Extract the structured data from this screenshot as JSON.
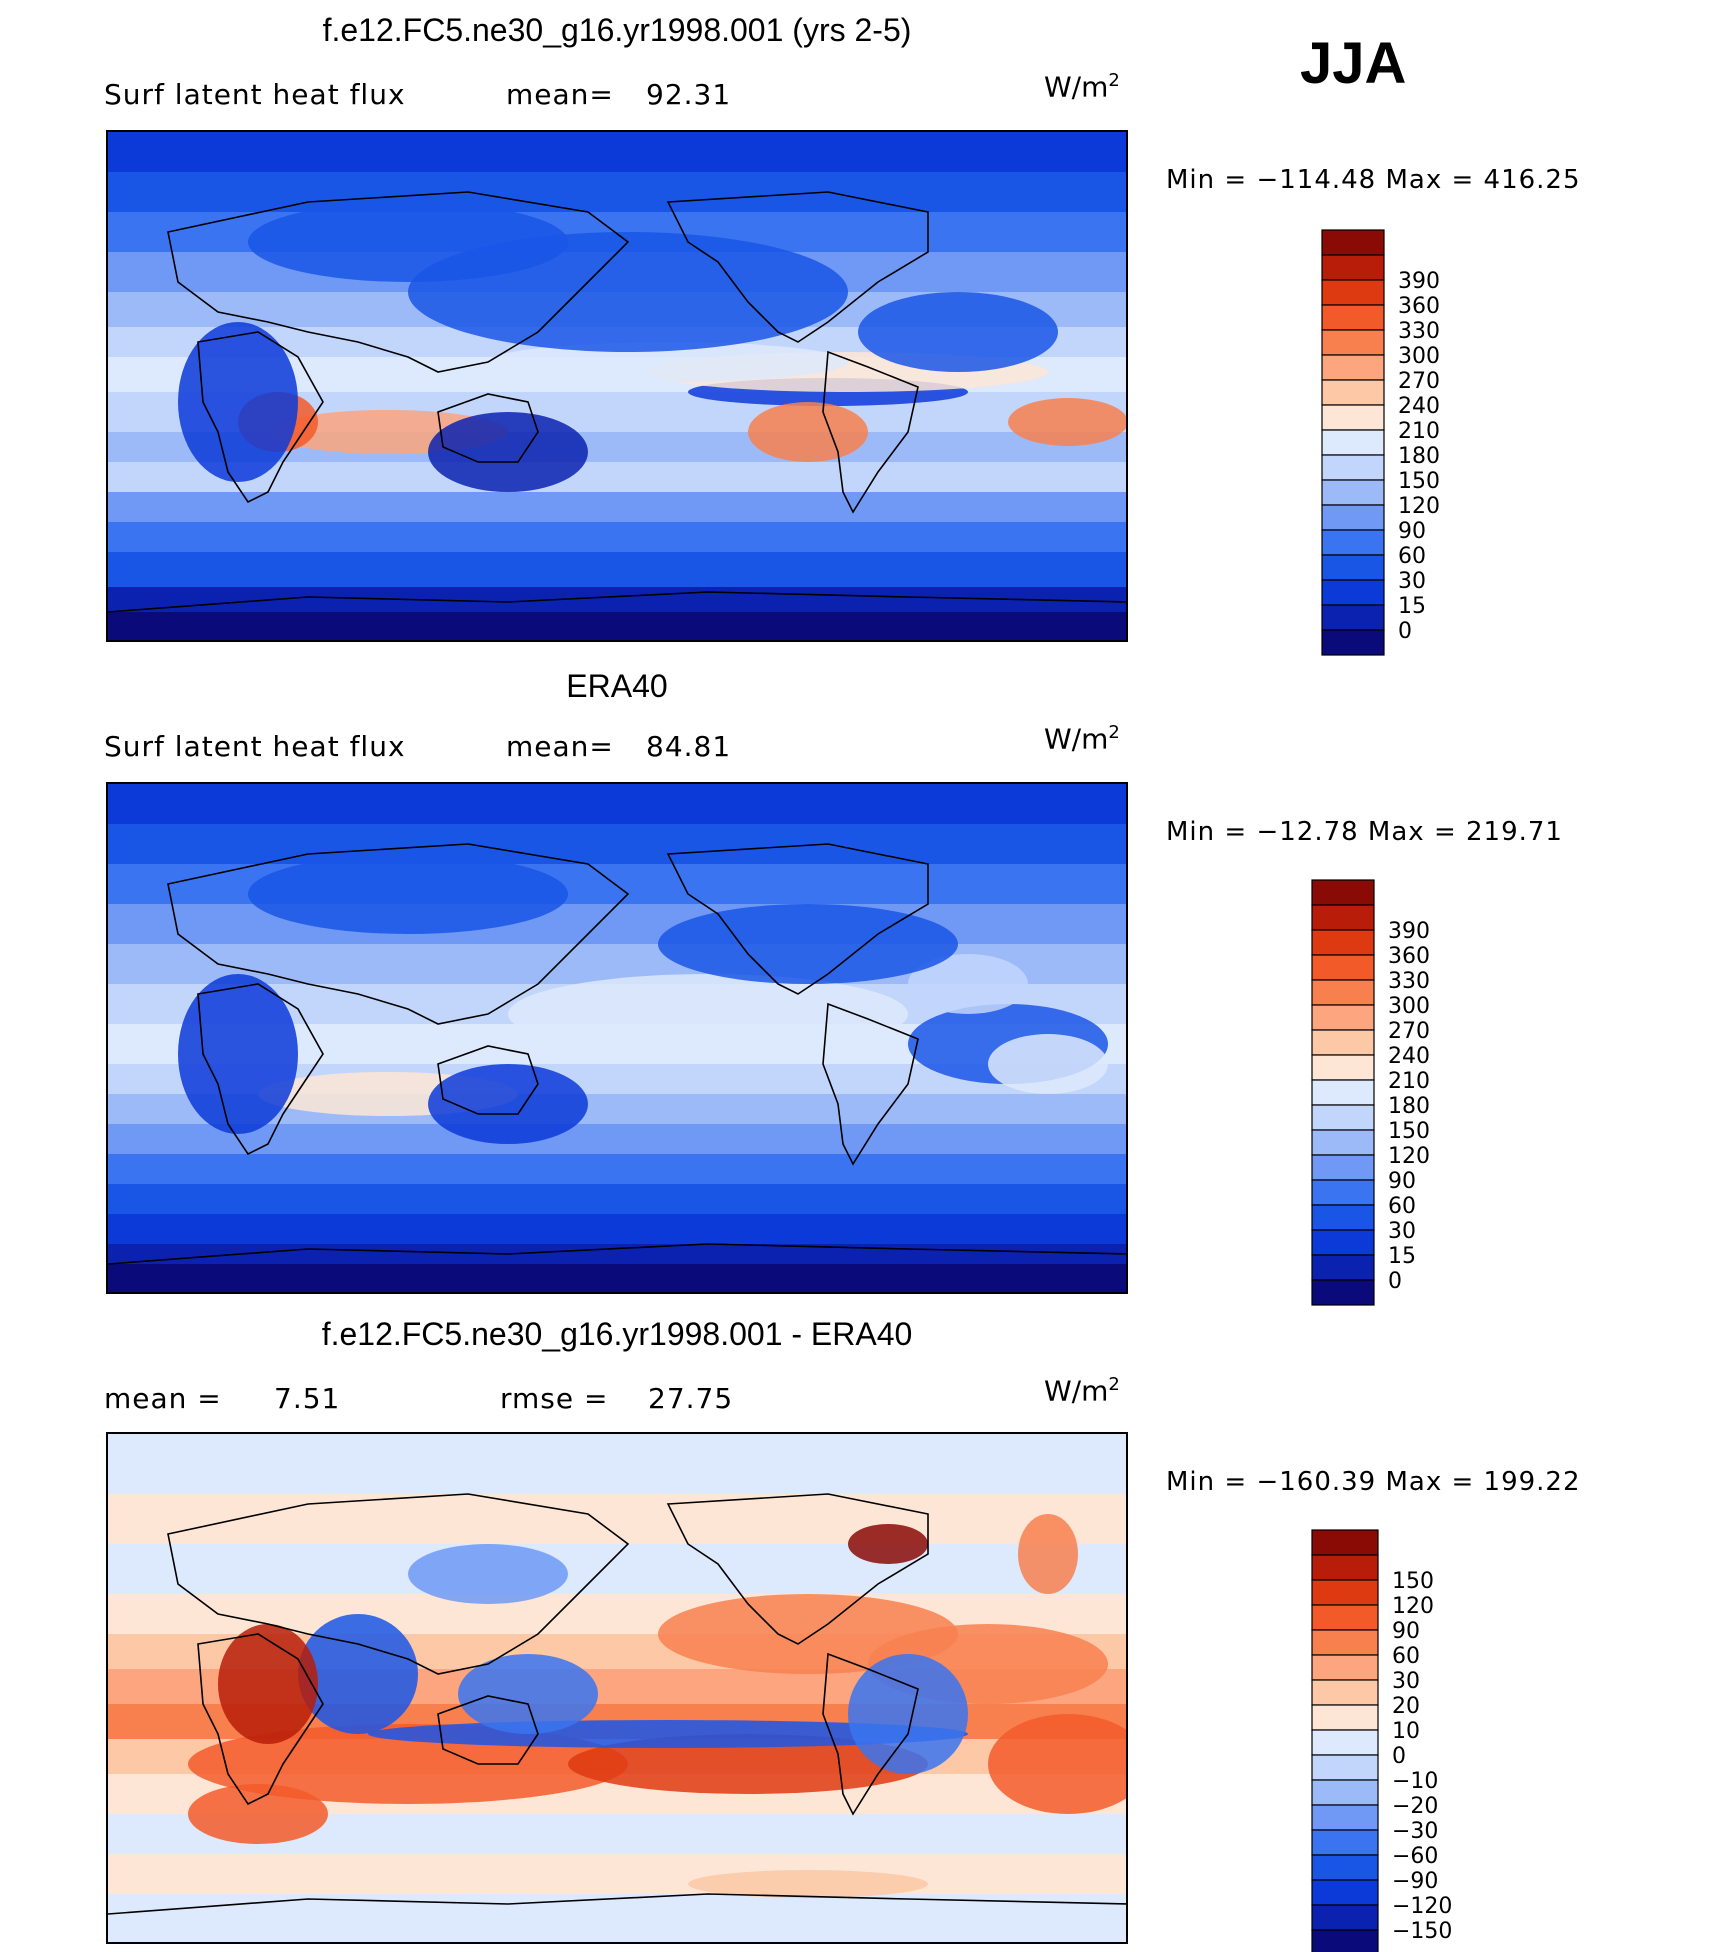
{
  "season": "JJA",
  "colors": {
    "seq": [
      "#0a0a7a",
      "#0b22b0",
      "#0c3ad8",
      "#1a56e6",
      "#3a74f0",
      "#6f99f5",
      "#9dbaf8",
      "#c2d5fb",
      "#dde9fc",
      "#fde6d6",
      "#fcc8a6",
      "#fca57e",
      "#f8804f",
      "#f35a2a",
      "#de3a12",
      "#b71d08",
      "#8a0a06"
    ],
    "diff": [
      "#0a0a7a",
      "#0b22b0",
      "#0c3ad8",
      "#1a56e6",
      "#3a74f0",
      "#6f99f5",
      "#9dbaf8",
      "#c2d5fb",
      "#dde9fc",
      "#fde6d6",
      "#fcc8a6",
      "#fca57e",
      "#f8804f",
      "#f35a2a",
      "#de3a12",
      "#b71d08",
      "#8a0a06"
    ]
  },
  "chart_data": [
    {
      "type": "heatmap",
      "title": "f.e12.FC5.ne30_g16.yr1998.001 (yrs 2-5)",
      "subtitle": "Surf latent heat flux",
      "stat_label": "mean=",
      "stat_value": "92.31",
      "units": "W/m",
      "units_sup": "2",
      "min_text": "Min = −114.48 Max = 416.25",
      "colorbar_ticks": [
        "0",
        "15",
        "30",
        "60",
        "90",
        "120",
        "150",
        "180",
        "210",
        "240",
        "270",
        "300",
        "330",
        "360",
        "390"
      ]
    },
    {
      "type": "heatmap",
      "title": "ERA40",
      "subtitle": "Surf latent heat flux",
      "stat_label": "mean=",
      "stat_value": "84.81",
      "units": "W/m",
      "units_sup": "2",
      "min_text": "Min = −12.78 Max = 219.71",
      "colorbar_ticks": [
        "0",
        "15",
        "30",
        "60",
        "90",
        "120",
        "150",
        "180",
        "210",
        "240",
        "270",
        "300",
        "330",
        "360",
        "390"
      ]
    },
    {
      "type": "heatmap",
      "title": "f.e12.FC5.ne30_g16.yr1998.001 - ERA40",
      "stat_label": "mean =",
      "stat_value": "7.51",
      "stat2_label": "rmse =",
      "stat2_value": "27.75",
      "units": "W/m",
      "units_sup": "2",
      "min_text": "Min = −160.39 Max = 199.22",
      "colorbar_ticks": [
        "−150",
        "−120",
        "−90",
        "−60",
        "−30",
        "−20",
        "−10",
        "0",
        "10",
        "20",
        "30",
        "60",
        "90",
        "120",
        "150"
      ]
    }
  ]
}
